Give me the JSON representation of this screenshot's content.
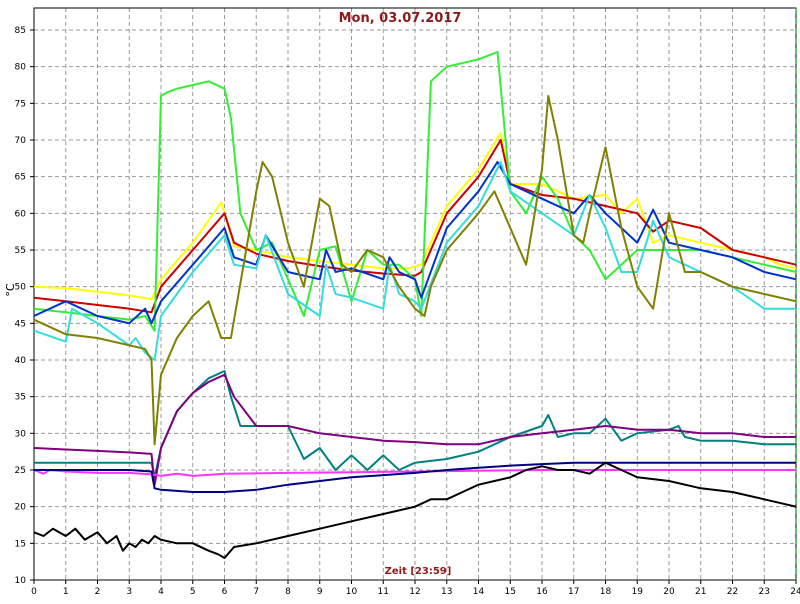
{
  "chart_data": {
    "type": "line",
    "title": "Mon, 03.07.2017",
    "xlabel": "Zeit [23:59]",
    "ylabel": "°C",
    "xlim": [
      0,
      24
    ],
    "ylim": [
      10,
      88
    ],
    "x_ticks": [
      0,
      1,
      2,
      3,
      4,
      5,
      6,
      7,
      8,
      9,
      10,
      11,
      12,
      13,
      14,
      15,
      16,
      17,
      18,
      19,
      20,
      21,
      22,
      23,
      24
    ],
    "y_ticks": [
      10,
      15,
      20,
      25,
      30,
      35,
      40,
      45,
      50,
      55,
      60,
      65,
      70,
      75,
      80,
      85
    ],
    "grid": true,
    "legend": "none",
    "colors": {
      "title": "#8b1a1a",
      "xlabel": "#8b1a1a",
      "grid": "#9a9a9a",
      "axis": "#000000",
      "right_marker": "#00a000"
    },
    "series": [
      {
        "color": "#ffff00",
        "x": [
          0,
          1,
          2,
          3,
          3.7,
          4,
          5,
          5.9,
          6.3,
          7,
          8,
          9,
          10,
          11,
          11.8,
          12.2,
          13,
          14,
          14.7,
          15,
          16,
          17,
          18,
          18.5,
          19,
          19.5,
          20,
          21,
          22,
          23,
          23.5,
          24
        ],
        "y": [
          50,
          49.8,
          49.3,
          48.8,
          48.3,
          51,
          56,
          61.5,
          55.5,
          55,
          54,
          53.5,
          53,
          52.5,
          52.5,
          53,
          61,
          66,
          71,
          64,
          64,
          62,
          62.5,
          60,
          62,
          56,
          57,
          56,
          55,
          54,
          53,
          52.5
        ]
      },
      {
        "color": "#cc0000",
        "x": [
          0,
          1,
          2,
          3,
          3.7,
          4,
          5,
          6,
          6.3,
          7,
          8,
          9,
          10,
          11,
          12,
          12.2,
          13,
          14,
          14.7,
          15,
          16,
          17,
          18,
          19,
          19.5,
          20,
          21,
          22,
          23,
          24
        ],
        "y": [
          48.5,
          48,
          47.5,
          47,
          46.5,
          50,
          55,
          60,
          56,
          54.5,
          53.5,
          52.8,
          52.2,
          51.8,
          51.5,
          52,
          60,
          65,
          70,
          64,
          62.5,
          62,
          61,
          60,
          57.5,
          59,
          58,
          55,
          54,
          53
        ]
      },
      {
        "color": "#33ee33",
        "x": [
          0,
          1,
          2,
          3,
          3.5,
          3.8,
          4,
          4.2,
          4.5,
          5,
          5.5,
          6,
          6.2,
          6.5,
          7,
          7.5,
          8,
          8.5,
          9,
          9.5,
          10,
          10.5,
          11,
          11.5,
          12,
          12.2,
          12.5,
          13,
          14,
          14.6,
          15,
          15.5,
          16,
          16.5,
          17,
          17.5,
          18,
          19,
          20,
          21,
          22,
          23,
          24
        ],
        "y": [
          47,
          46.5,
          46,
          45.5,
          46,
          44,
          76,
          76.5,
          77,
          77.5,
          78,
          77,
          73,
          60,
          55,
          56,
          51,
          46,
          55,
          55.5,
          48,
          55,
          53,
          53,
          51,
          46,
          78,
          80,
          81,
          82,
          63,
          60,
          65,
          62,
          57,
          55,
          51,
          55,
          55,
          55,
          54,
          53,
          52
        ]
      },
      {
        "color": "#0033cc",
        "x": [
          0,
          1,
          2,
          3,
          3.5,
          3.7,
          4,
          5,
          6,
          6.3,
          7,
          7.3,
          8,
          9,
          9.2,
          9.5,
          10,
          11,
          11.2,
          11.5,
          12,
          12.2,
          13,
          14,
          14.6,
          15,
          16,
          17,
          17.5,
          18,
          18.5,
          19,
          19.5,
          20,
          21,
          22,
          23,
          24
        ],
        "y": [
          46,
          48,
          46,
          45,
          47,
          45,
          48,
          53,
          58,
          54,
          53,
          57,
          52,
          51,
          55,
          52,
          52.5,
          51,
          54,
          52,
          51,
          48.5,
          58,
          63,
          67,
          64,
          62,
          60,
          62.5,
          60,
          58,
          56,
          60.5,
          56,
          55,
          54,
          52,
          51
        ]
      },
      {
        "color": "#33dddd",
        "x": [
          0,
          1,
          1.2,
          2,
          3,
          3.2,
          3.5,
          3.8,
          4,
          5,
          6,
          6.3,
          7,
          7.3,
          8,
          9,
          9.2,
          9.5,
          10,
          11,
          11.2,
          11.5,
          12,
          12.2,
          13,
          14,
          14.7,
          15,
          16,
          17,
          17.5,
          18,
          18.5,
          19,
          19.5,
          20,
          21,
          22,
          23,
          24
        ],
        "y": [
          44,
          42.5,
          47,
          45,
          42,
          43,
          41,
          40,
          46,
          52,
          57,
          53,
          52.5,
          57,
          49,
          46,
          53,
          49,
          48.5,
          47,
          53,
          49,
          48,
          47,
          56,
          61,
          67,
          63,
          60,
          57,
          62.5,
          58,
          52,
          52,
          59,
          54,
          52,
          50,
          47,
          47
        ]
      },
      {
        "color": "#808000",
        "x": [
          0,
          1,
          2,
          3,
          3.5,
          3.7,
          3.8,
          4,
          4.5,
          5,
          5.5,
          5.9,
          6.2,
          7,
          7.2,
          7.5,
          8,
          8.5,
          9,
          9.3,
          9.7,
          10,
          10.5,
          11,
          11.5,
          12,
          12.3,
          12.5,
          13,
          14,
          14.5,
          15,
          15.5,
          16,
          16.2,
          16.5,
          17,
          17.3,
          17.5,
          18,
          18.5,
          19,
          19.5,
          20,
          20.5,
          21,
          22,
          23,
          24
        ],
        "y": [
          45.5,
          43.5,
          43,
          42,
          41.5,
          40,
          28.5,
          38,
          43,
          46,
          48,
          43,
          43,
          63,
          67,
          65,
          56,
          50,
          62,
          61,
          53,
          52,
          55,
          54,
          50,
          47,
          46,
          50,
          55,
          60,
          63,
          58,
          53,
          66,
          76,
          70,
          57,
          56,
          60,
          69,
          58,
          50,
          47,
          60,
          52,
          52,
          50,
          49,
          48
        ]
      },
      {
        "color": "#008080",
        "x": [
          0,
          1,
          2,
          3,
          3.7,
          3.8,
          4,
          4.5,
          5,
          5.5,
          6,
          6.2,
          6.5,
          7,
          8,
          8.5,
          9,
          9.5,
          10,
          10.5,
          11,
          11.5,
          12,
          13,
          14,
          15,
          16,
          16.2,
          16.5,
          17,
          17.5,
          18,
          18.5,
          19,
          20,
          20.3,
          20.5,
          21,
          22,
          23,
          24
        ],
        "y": [
          26,
          26,
          26,
          26,
          26,
          24,
          28,
          33,
          35.5,
          37.5,
          38.5,
          35,
          31,
          31,
          31,
          26.5,
          28,
          25,
          27,
          25,
          27,
          25,
          26,
          26.5,
          27.5,
          29.5,
          31,
          32.5,
          29.5,
          30,
          30,
          32,
          29,
          30,
          30.5,
          31,
          29.5,
          29,
          29,
          28.5,
          28.5
        ]
      },
      {
        "color": "#800080",
        "x": [
          0,
          1,
          2,
          3,
          3.7,
          3.8,
          4,
          4.5,
          5,
          5.5,
          6,
          6.3,
          7,
          8,
          9,
          10,
          11,
          12,
          13,
          14,
          15,
          16,
          17,
          18,
          19,
          20,
          21,
          22,
          23,
          24
        ],
        "y": [
          28,
          27.8,
          27.6,
          27.4,
          27.2,
          23,
          28,
          33,
          35.5,
          37,
          38,
          35,
          31,
          31,
          30,
          29.5,
          29,
          28.8,
          28.5,
          28.5,
          29.5,
          30,
          30.5,
          31,
          30.5,
          30.5,
          30,
          30,
          29.5,
          29.5
        ]
      },
      {
        "color": "#ff33ff",
        "x": [
          0,
          0.3,
          0.5,
          1,
          2,
          3,
          3.7,
          4,
          4.5,
          5,
          6,
          8,
          10,
          12,
          14,
          16,
          18,
          20,
          22,
          24
        ],
        "y": [
          25,
          24.5,
          25,
          24.8,
          24.6,
          24.6,
          24.4,
          24.2,
          24.5,
          24.2,
          24.5,
          24.6,
          24.7,
          24.8,
          24.9,
          25,
          25,
          25,
          25,
          25
        ]
      },
      {
        "color": "#000080",
        "x": [
          0,
          1,
          2,
          3,
          3.7,
          3.8,
          4,
          5,
          6,
          7,
          8,
          9,
          10,
          11,
          12,
          13,
          14,
          15,
          16,
          17,
          18,
          19,
          20,
          21,
          22,
          23,
          24
        ],
        "y": [
          25,
          25,
          25,
          25,
          24.8,
          22.5,
          22.3,
          22,
          22,
          22.3,
          23,
          23.5,
          24,
          24.3,
          24.6,
          25,
          25.3,
          25.6,
          25.8,
          26,
          26,
          26,
          26,
          26,
          26,
          26,
          26
        ]
      },
      {
        "color": "#000000",
        "x": [
          0,
          0.3,
          0.6,
          1,
          1.3,
          1.6,
          2,
          2.3,
          2.6,
          2.8,
          3,
          3.2,
          3.4,
          3.6,
          3.8,
          4,
          4.5,
          5,
          5.5,
          5.8,
          6,
          6.3,
          7,
          8,
          9,
          10,
          11,
          12,
          12.5,
          13,
          13.5,
          14,
          14.5,
          15,
          15.5,
          16,
          16.5,
          17,
          17.5,
          18,
          18.5,
          19,
          20,
          21,
          22,
          23,
          24
        ],
        "y": [
          16.5,
          16,
          17,
          16,
          17,
          15.5,
          16.5,
          15,
          16,
          14,
          15,
          14.5,
          15.5,
          15,
          16,
          15.5,
          15,
          15,
          14,
          13.5,
          13,
          14.5,
          15,
          16,
          17,
          18,
          19,
          20,
          21,
          21,
          22,
          23,
          23.5,
          24,
          25,
          25.5,
          25,
          25,
          24.5,
          26,
          25,
          24,
          23.5,
          22.5,
          22,
          21,
          20
        ]
      }
    ]
  }
}
